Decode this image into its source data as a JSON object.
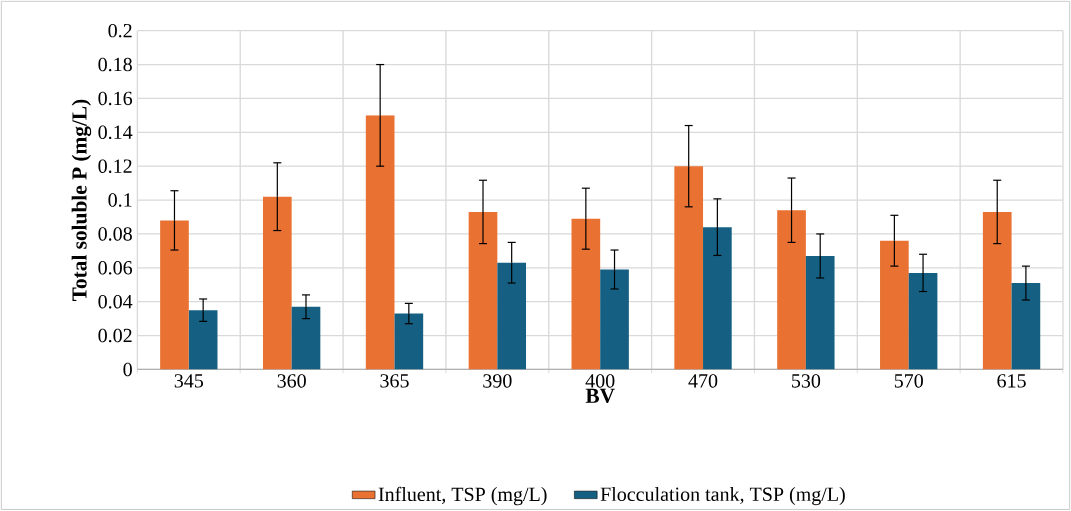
{
  "chart_data": {
    "type": "bar",
    "xlabel": "BV",
    "ylabel": "Total soluble P (mg/L)",
    "categories": [
      "345",
      "360",
      "365",
      "390",
      "400",
      "470",
      "530",
      "570",
      "615"
    ],
    "series": [
      {
        "name": "Influent, TSP (mg/L)",
        "color": "#e97132",
        "values": [
          0.088,
          0.102,
          0.15,
          0.093,
          0.089,
          0.12,
          0.094,
          0.076,
          0.093
        ],
        "errors": [
          0.0175,
          0.02,
          0.03,
          0.0187,
          0.018,
          0.024,
          0.019,
          0.015,
          0.0187
        ]
      },
      {
        "name": "Flocculation tank, TSP (mg/L)",
        "color": "#156082",
        "values": [
          0.035,
          0.037,
          0.033,
          0.063,
          0.059,
          0.084,
          0.067,
          0.057,
          0.051
        ],
        "errors": [
          0.0066,
          0.007,
          0.006,
          0.012,
          0.0115,
          0.0167,
          0.013,
          0.011,
          0.01
        ]
      }
    ],
    "ylim": [
      0,
      0.2
    ],
    "yticks": [
      0,
      0.02,
      0.04,
      0.06,
      0.08,
      0.1,
      0.12,
      0.14,
      0.16,
      0.18,
      0.2
    ],
    "grid": true,
    "legend": "bottom"
  }
}
